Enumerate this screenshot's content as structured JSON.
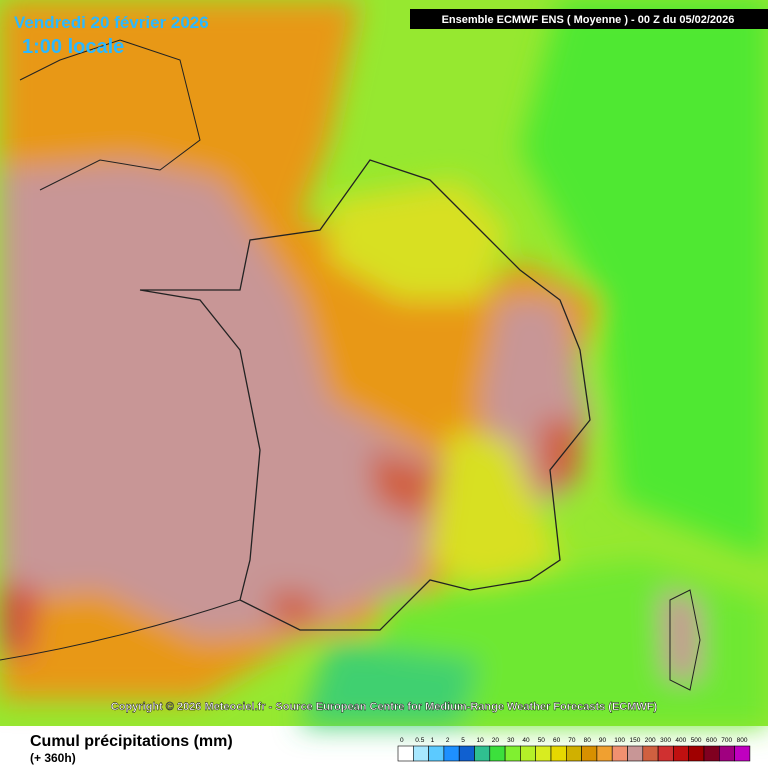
{
  "header": {
    "date": "Vendredi 20 février 2026",
    "time": "1:00 locale",
    "model": "Ensemble ECMWF ENS  ( Moyenne )  -  00 Z du 05/02/2026",
    "copyright": "Copyright © 2026 Meteociel.fr - Source European Centre for Medium-Range Weather Forecasts (ECMWF)"
  },
  "footer": {
    "title": "Cumul précipitations (mm)",
    "lead": "(+ 360h)"
  },
  "legend": {
    "levels": [
      0,
      0.5,
      1,
      2,
      5,
      10,
      20,
      30,
      40,
      50,
      60,
      70,
      80,
      90,
      100,
      150,
      200,
      300,
      400,
      500,
      600,
      700,
      800
    ],
    "colors": [
      "#ffffff",
      "#a8e8ff",
      "#5ccaff",
      "#1e90ff",
      "#1060d0",
      "#30c090",
      "#3ce03c",
      "#80f030",
      "#b4f028",
      "#d8ec20",
      "#e6d800",
      "#d0b000",
      "#d89000",
      "#f0a030",
      "#f09070",
      "#c89696",
      "#d06040",
      "#d03030",
      "#c01010",
      "#a00000",
      "#800020",
      "#a00080",
      "#c000c0"
    ]
  }
}
